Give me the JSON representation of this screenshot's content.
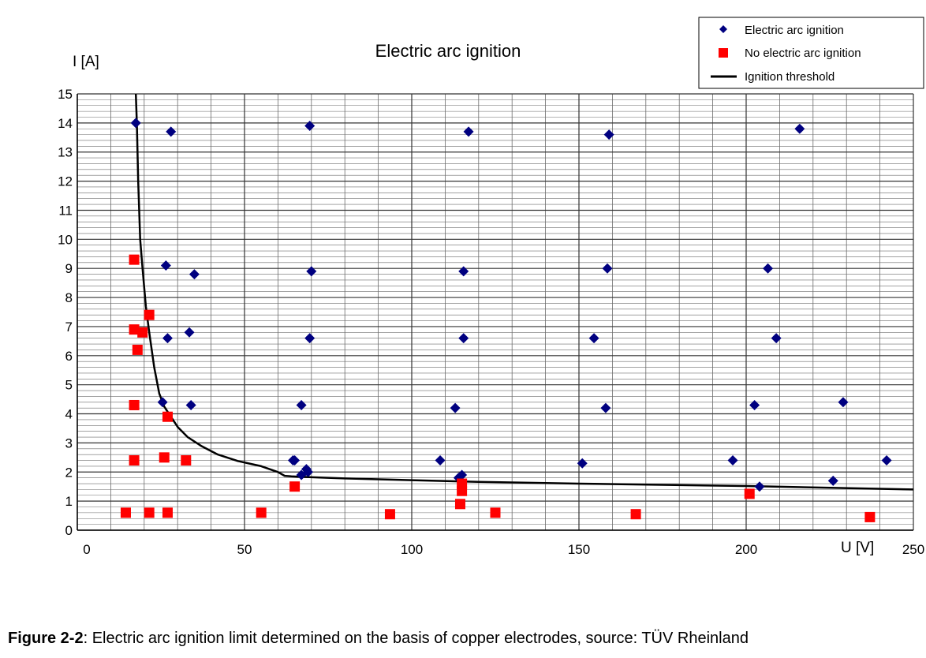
{
  "chart_data": {
    "type": "scatter",
    "title": "Electric arc ignition",
    "xlabel": "U [V]",
    "ylabel": "I [A]",
    "xlim": [
      0,
      250
    ],
    "ylim": [
      0,
      15
    ],
    "x_ticks": [
      0,
      50,
      100,
      150,
      200,
      250
    ],
    "y_ticks": [
      0,
      1,
      2,
      3,
      4,
      5,
      6,
      7,
      8,
      9,
      10,
      11,
      12,
      13,
      14,
      15
    ],
    "grid": true,
    "legend_position": "top-right",
    "series": [
      {
        "name": "Electric arc ignition",
        "marker": "diamond",
        "color": "#000080",
        "points": [
          [
            17.5,
            14.0
          ],
          [
            28,
            13.7
          ],
          [
            69.5,
            13.9
          ],
          [
            117,
            13.7
          ],
          [
            159,
            13.6
          ],
          [
            216,
            13.8
          ],
          [
            26.5,
            9.1
          ],
          [
            35,
            8.8
          ],
          [
            70,
            8.9
          ],
          [
            115.5,
            8.9
          ],
          [
            158.5,
            9.0
          ],
          [
            206.5,
            9.0
          ],
          [
            27,
            6.6
          ],
          [
            33.5,
            6.8
          ],
          [
            69.5,
            6.6
          ],
          [
            115.5,
            6.6
          ],
          [
            154.5,
            6.6
          ],
          [
            209,
            6.6
          ],
          [
            25.5,
            4.4
          ],
          [
            34,
            4.3
          ],
          [
            67,
            4.3
          ],
          [
            113,
            4.2
          ],
          [
            158,
            4.2
          ],
          [
            202.5,
            4.3
          ],
          [
            229,
            4.4
          ],
          [
            64.5,
            2.4
          ],
          [
            65,
            2.4
          ],
          [
            67,
            1.9
          ],
          [
            68.5,
            2.1
          ],
          [
            69,
            2.0
          ],
          [
            108.5,
            2.4
          ],
          [
            114,
            1.8
          ],
          [
            115,
            1.9
          ],
          [
            151,
            2.3
          ],
          [
            196,
            2.4
          ],
          [
            204,
            1.5
          ],
          [
            226,
            1.7
          ],
          [
            242,
            2.4
          ]
        ]
      },
      {
        "name": "No electric arc ignition",
        "marker": "square",
        "color": "#ff0000",
        "points": [
          [
            17,
            9.3
          ],
          [
            21.5,
            7.4
          ],
          [
            17,
            6.9
          ],
          [
            19.5,
            6.8
          ],
          [
            18,
            6.2
          ],
          [
            17,
            4.3
          ],
          [
            27,
            3.9
          ],
          [
            17,
            2.4
          ],
          [
            26,
            2.5
          ],
          [
            32.5,
            2.4
          ],
          [
            65,
            1.5
          ],
          [
            115,
            1.6
          ],
          [
            115,
            1.35
          ],
          [
            114.5,
            0.9
          ],
          [
            201,
            1.25
          ],
          [
            14.5,
            0.6
          ],
          [
            21.5,
            0.6
          ],
          [
            27,
            0.6
          ],
          [
            55,
            0.6
          ],
          [
            93.5,
            0.55
          ],
          [
            125,
            0.6
          ],
          [
            167,
            0.55
          ],
          [
            237,
            0.45
          ]
        ]
      },
      {
        "name": "Ignition threshold",
        "marker": "line",
        "color": "#000000",
        "points": [
          [
            17.5,
            15
          ],
          [
            17.8,
            14.0
          ],
          [
            18.2,
            12.0
          ],
          [
            18.8,
            10.0
          ],
          [
            19.5,
            9.0
          ],
          [
            20.5,
            7.7
          ],
          [
            21.5,
            6.8
          ],
          [
            23,
            5.6
          ],
          [
            24.5,
            4.7
          ],
          [
            26,
            4.25
          ],
          [
            28,
            3.9
          ],
          [
            30,
            3.55
          ],
          [
            33,
            3.2
          ],
          [
            37,
            2.9
          ],
          [
            42,
            2.6
          ],
          [
            48,
            2.38
          ],
          [
            55,
            2.2
          ],
          [
            60,
            2.0
          ],
          [
            62,
            1.87
          ],
          [
            64,
            1.85
          ],
          [
            70,
            1.82
          ],
          [
            80,
            1.78
          ],
          [
            100,
            1.72
          ],
          [
            120,
            1.66
          ],
          [
            150,
            1.6
          ],
          [
            200,
            1.52
          ],
          [
            250,
            1.4
          ]
        ]
      }
    ]
  },
  "legend": {
    "items": [
      {
        "label": "Electric arc ignition",
        "marker": "diamond",
        "color": "#000080"
      },
      {
        "label": "No electric arc ignition",
        "marker": "square",
        "color": "#ff0000"
      },
      {
        "label": "Ignition threshold",
        "marker": "line",
        "color": "#000000"
      }
    ]
  },
  "caption": {
    "bold": "Figure 2-2",
    "text": ": Electric arc ignition limit determined on the basis of copper electrodes, source: TÜV Rheinland"
  }
}
